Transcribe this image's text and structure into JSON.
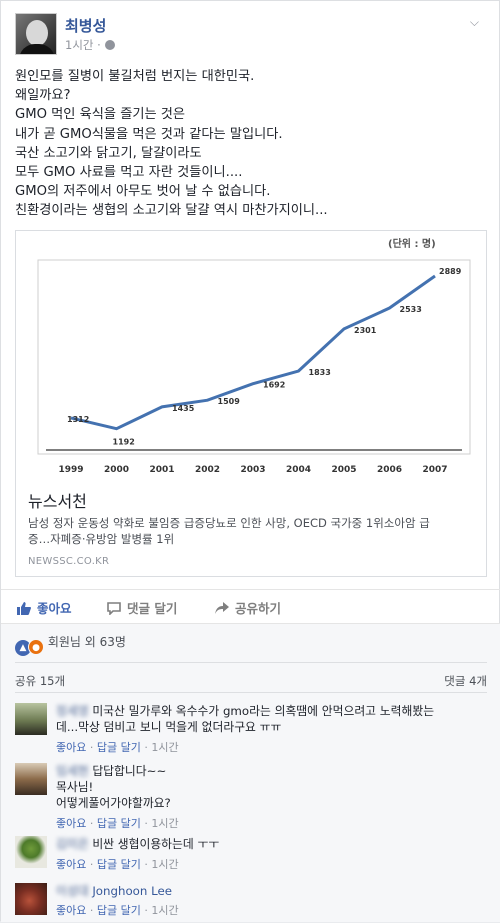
{
  "post": {
    "author": "최병성",
    "time": "1시간",
    "privacy_icon": "globe-icon",
    "lines": [
      "원인모를 질병이 불길처럼 번지는 대한민국.",
      "왜일까요?",
      "GMO 먹인 육식을 즐기는 것은",
      "내가 곧 GMO식물을 먹은 것과 같다는 말입니다.",
      "국산 소고기와 닭고기, 달걀이라도",
      "모두 GMO 사료를 먹고 자란 것들이니....",
      "GMO의 저주에서 아무도 벗어 날 수 없습니다.",
      "친환경이라는 생협의 소고기와 달걀 역시 마찬가지이니..."
    ]
  },
  "link": {
    "title": "뉴스서천",
    "description": "남성 정자 운동성 약화로 불임증 급증당뇨로 인한 사망, OECD 국가중 1위소아암 급증…자폐증·유방암 발병률 1위",
    "description_line1": "남성 정자 운동성 약화로 불임증 급증당뇨로 인한 사망, OECD 국가중 1위소아암 급",
    "description_line2": "증…자폐증·유방암 발병률 1위",
    "source": "NEWSSC.CO.KR"
  },
  "chart_data": {
    "type": "line",
    "unit_label": "(단위 : 명)",
    "categories": [
      "1999",
      "2000",
      "2001",
      "2002",
      "2003",
      "2004",
      "2005",
      "2006",
      "2007"
    ],
    "series": [
      {
        "values": [
          1312,
          1192,
          1435,
          1509,
          1692,
          1833,
          2301,
          2533,
          2889
        ]
      }
    ],
    "ylim": [
      1000,
      3000
    ],
    "grid": false,
    "line_color": "#4472b0"
  },
  "actions": {
    "like": "좋아요",
    "comment": "댓글 달기",
    "share": "공유하기"
  },
  "feedback": {
    "reactions": "회원님 외 63명",
    "shares": "공유 15개",
    "comments_count": "댓글 4개"
  },
  "comments": [
    {
      "name": "정세영",
      "text_line1": "미국산 밀가루와 옥수수가 gmo라는 의혹땜에 안먹으려고 노력해봤는",
      "text_line2": "데...막상 덤비고 보니 먹을게 없더라구요 ㅠㅠ",
      "like": "좋아요",
      "reply": "답글 달기",
      "time": "1시간"
    },
    {
      "name": "임세현",
      "text_line1": "답답합니다~~",
      "text_line2": "목사님!",
      "text_line3": "어떻게풀어가야할까요?",
      "like": "좋아요",
      "reply": "답글 달기",
      "time": "1시간"
    },
    {
      "name": "김미은",
      "text_line1": "비싼 생협이용하는데 ㅜㅜ",
      "like": "좋아요",
      "reply": "답글 달기",
      "time": "1시간"
    },
    {
      "name": "이성대",
      "text_line1": "Jonghoon Lee",
      "like": "좋아요",
      "reply": "답글 달기",
      "time": "1시간"
    }
  ]
}
